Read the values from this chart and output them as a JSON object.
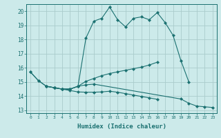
{
  "xlabel": "Humidex (Indice chaleur)",
  "background_color": "#cceaea",
  "grid_color": "#aacccc",
  "line_color": "#1a7070",
  "xlim": [
    -0.5,
    23.5
  ],
  "ylim": [
    12.8,
    20.5
  ],
  "yticks": [
    13,
    14,
    15,
    16,
    17,
    18,
    19,
    20
  ],
  "xticks": [
    0,
    1,
    2,
    3,
    4,
    5,
    6,
    7,
    8,
    9,
    10,
    11,
    12,
    13,
    14,
    15,
    16,
    17,
    18,
    19,
    20,
    21,
    22,
    23
  ],
  "curve_main": {
    "x": [
      0,
      1,
      2,
      3,
      4,
      5,
      6,
      7,
      8,
      9,
      10,
      11,
      12,
      13,
      14,
      15,
      16,
      17,
      18,
      19,
      20
    ],
    "y": [
      15.7,
      15.1,
      14.7,
      14.6,
      14.5,
      14.5,
      14.7,
      18.1,
      19.3,
      19.5,
      20.3,
      19.4,
      18.9,
      19.5,
      19.6,
      19.4,
      19.9,
      19.2,
      18.3,
      16.5,
      15.0
    ]
  },
  "curve_bot": {
    "x": [
      0,
      1,
      2,
      3,
      4,
      5,
      6,
      7,
      8,
      19,
      20,
      21,
      22,
      23
    ],
    "y": [
      15.7,
      15.1,
      14.7,
      14.6,
      14.5,
      14.5,
      14.7,
      14.8,
      14.85,
      13.8,
      13.5,
      13.3,
      13.25,
      13.2
    ]
  },
  "curve_up": {
    "x": [
      2,
      3,
      4,
      5,
      6,
      7,
      8,
      9,
      10,
      11,
      12,
      13,
      14,
      15,
      16
    ],
    "y": [
      14.7,
      14.6,
      14.5,
      14.5,
      14.7,
      15.05,
      15.25,
      15.45,
      15.6,
      15.72,
      15.83,
      15.94,
      16.05,
      16.2,
      16.4
    ]
  },
  "curve_dn": {
    "x": [
      2,
      3,
      4,
      5,
      6,
      7,
      8,
      9,
      10,
      11,
      12,
      13,
      14,
      15,
      16
    ],
    "y": [
      14.7,
      14.6,
      14.5,
      14.4,
      14.3,
      14.28,
      14.28,
      14.3,
      14.35,
      14.28,
      14.18,
      14.08,
      13.98,
      13.88,
      13.78
    ]
  }
}
